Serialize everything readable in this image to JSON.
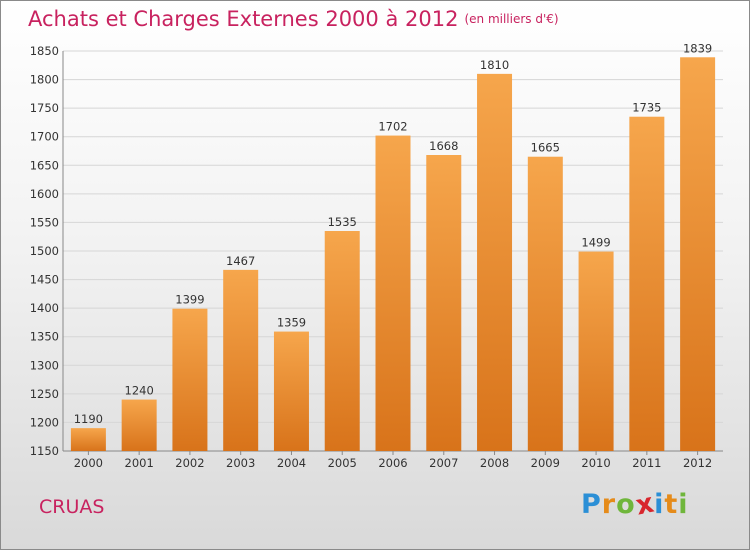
{
  "header": {
    "title": "Achats et Charges Externes 2000 à 2012",
    "unit": "(en milliers d'€)"
  },
  "footer": {
    "town": "CRUAS",
    "logo_letters": [
      "P",
      "r",
      "o",
      "x",
      "i",
      "t",
      "i"
    ],
    "logo_colors": [
      "#2b8fd6",
      "#e58b1a",
      "#6fb63b",
      "#d8262d",
      "#2b8fd6",
      "#e58b1a",
      "#6fb63b"
    ]
  },
  "chart_data": {
    "type": "bar",
    "title": "Achats et Charges Externes 2000 à 2012",
    "subtitle": "(en milliers d'€)",
    "categories": [
      "2000",
      "2001",
      "2002",
      "2003",
      "2004",
      "2005",
      "2006",
      "2007",
      "2008",
      "2009",
      "2010",
      "2011",
      "2012"
    ],
    "values": [
      1190,
      1240,
      1399,
      1467,
      1359,
      1535,
      1702,
      1668,
      1810,
      1665,
      1499,
      1735,
      1839
    ],
    "ylim": [
      1150,
      1850
    ],
    "yticks": [
      1150,
      1200,
      1250,
      1300,
      1350,
      1400,
      1450,
      1500,
      1550,
      1600,
      1650,
      1700,
      1750,
      1800,
      1850
    ],
    "grid": true,
    "bar_color": "#f0922f",
    "xlabel": "",
    "ylabel": ""
  }
}
